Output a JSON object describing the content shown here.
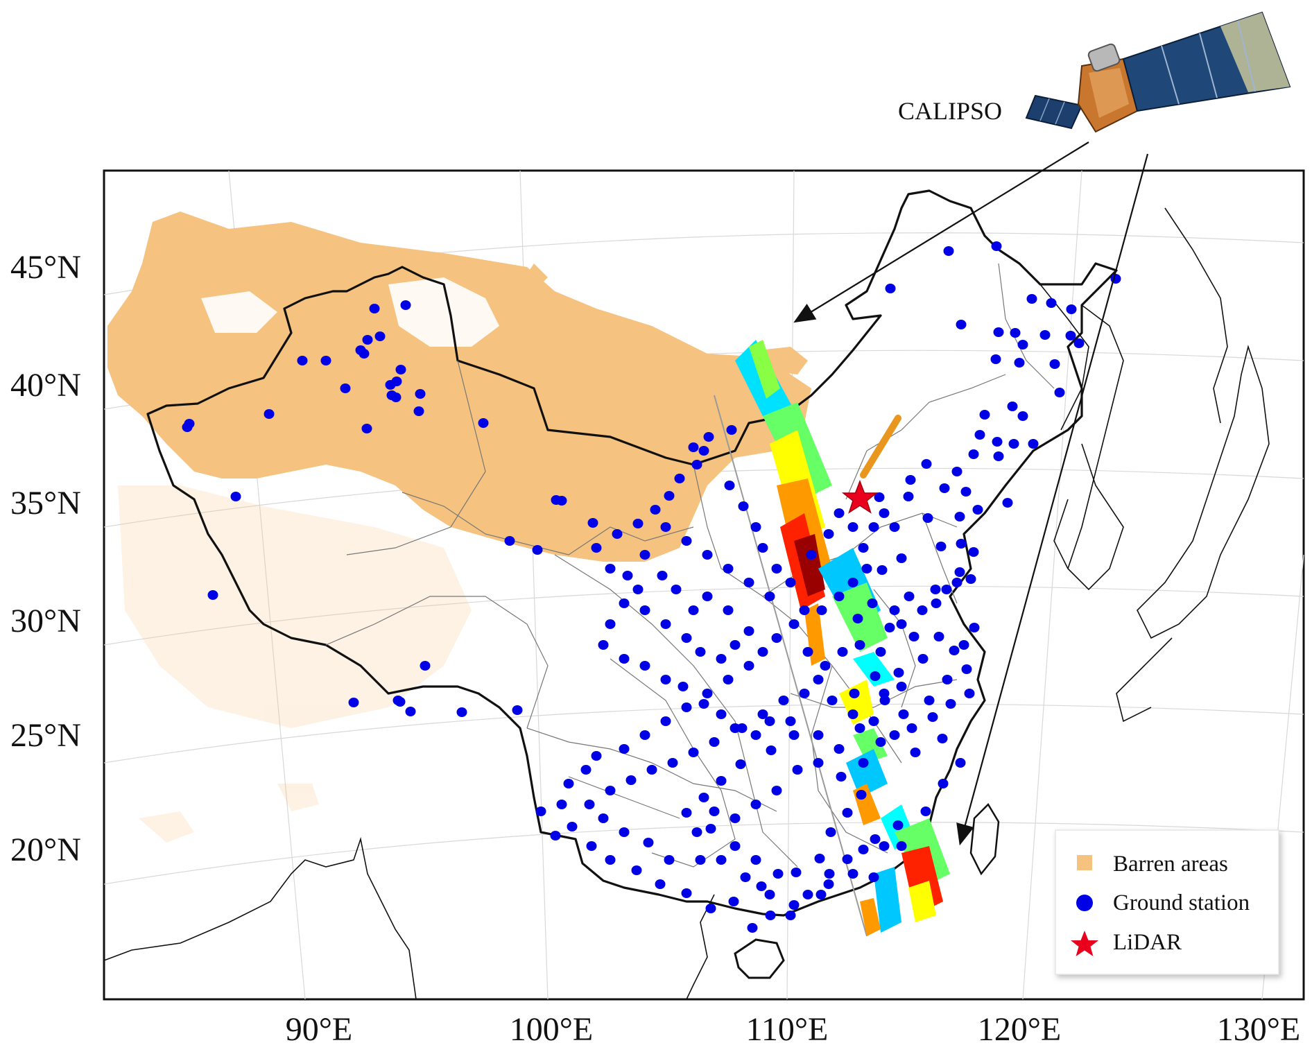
{
  "satellite": {
    "label": "CALIPSO",
    "icon": "satellite-icon"
  },
  "map": {
    "lat_labels": [
      "45°N",
      "40°N",
      "35°N",
      "30°N",
      "25°N",
      "20°N"
    ],
    "lon_labels": [
      "90°E",
      "100°E",
      "110°E",
      "120°E",
      "130°E"
    ]
  },
  "legend": {
    "items": [
      {
        "label": "Barren areas",
        "color": "#f5c27f",
        "symbol": "square"
      },
      {
        "label": "Ground station",
        "color": "#0000e6",
        "symbol": "circle"
      },
      {
        "label": "LiDAR",
        "color": "#e8001c",
        "symbol": "star"
      }
    ]
  },
  "colors": {
    "barren": "#f5c27f",
    "station": "#0000e6",
    "lidar": "#e8001c",
    "lidar_beam": "#e8961e",
    "calipso_track_colormap": [
      "#00ffff",
      "#00c8ff",
      "#66ff66",
      "#ffff00",
      "#ff9900",
      "#ff2200",
      "#990000"
    ]
  }
}
